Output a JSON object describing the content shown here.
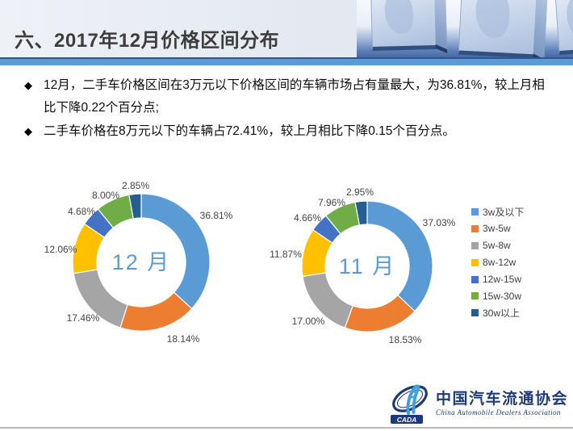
{
  "header": {
    "title": "六、2017年12月价格区间分布"
  },
  "bullets": [
    {
      "marker": "◆",
      "text": "12月，二手车价格区间在3万元以下价格区间的车辆市场占有量最大，为36.81%，较上月相比下降0.22个百分点;"
    },
    {
      "marker": "◆",
      "text": "二手车价格在8万元以下的车辆占72.41%，较上月相比下降0.15个百分点。"
    }
  ],
  "palette": {
    "blue": "#5B9BD5",
    "orange": "#ED7D31",
    "gray": "#A5A5A5",
    "gold": "#FFC000",
    "blue2": "#4472C4",
    "green": "#70AD47",
    "navy": "#255E91",
    "accent_bar": "#5B9BD5",
    "accent_line": "#2F5597",
    "center_label_color": "#5B9BD5",
    "data_label_color": "#444444"
  },
  "chart_data": [
    {
      "type": "pie",
      "subtype": "donut",
      "title": "12 月",
      "categories": [
        "3w及以下",
        "3w-5w",
        "5w-8w",
        "8w-12w",
        "12w-15w",
        "15w-30w",
        "30w以上"
      ],
      "values": [
        36.81,
        18.14,
        17.46,
        12.06,
        4.68,
        8.0,
        2.85
      ],
      "labels": [
        "36.81%",
        "18.14%",
        "17.46%",
        "12.06%",
        "4.68%",
        "8.00%",
        "2.85%"
      ],
      "colors": [
        "#5B9BD5",
        "#ED7D31",
        "#A5A5A5",
        "#FFC000",
        "#4472C4",
        "#70AD47",
        "#255E91"
      ],
      "start_angle_deg": 0,
      "direction": "clockwise",
      "legend_position": "none"
    },
    {
      "type": "pie",
      "subtype": "donut",
      "title": "11 月",
      "categories": [
        "3w及以下",
        "3w-5w",
        "5w-8w",
        "8w-12w",
        "12w-15w",
        "15w-30w",
        "30w以上"
      ],
      "values": [
        37.03,
        18.53,
        17.0,
        11.87,
        4.66,
        7.96,
        2.95
      ],
      "labels": [
        "37.03%",
        "18.53%",
        "17.00%",
        "11.87%",
        "4.66%",
        "7.96%",
        "2.95%"
      ],
      "colors": [
        "#5B9BD5",
        "#ED7D31",
        "#A5A5A5",
        "#FFC000",
        "#4472C4",
        "#70AD47",
        "#255E91"
      ],
      "start_angle_deg": 0,
      "direction": "clockwise",
      "legend_position": "right"
    }
  ],
  "legend": {
    "items": [
      {
        "label": "3w及以下",
        "color": "#5B9BD5"
      },
      {
        "label": "3w-5w",
        "color": "#ED7D31"
      },
      {
        "label": "5w-8w",
        "color": "#A5A5A5"
      },
      {
        "label": "8w-12w",
        "color": "#FFC000"
      },
      {
        "label": "12w-15w",
        "color": "#4472C4"
      },
      {
        "label": "15w-30w",
        "color": "#70AD47"
      },
      {
        "label": "30w以上",
        "color": "#255E91"
      }
    ]
  },
  "footer": {
    "logo_abbr": "CADA",
    "logo_cn": "中国汽车流通协会",
    "logo_en": "China Automobile Dealers Association"
  }
}
